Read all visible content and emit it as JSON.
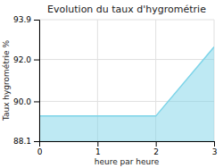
{
  "chart_data": {
    "type": "area",
    "title": "Evolution du taux d'hygrométrie",
    "xlabel": "heure par heure",
    "ylabel": "Taux hygrométrie %",
    "x": [
      0,
      2,
      3
    ],
    "values": [
      89.3,
      89.3,
      92.6
    ],
    "color": "#7dd4e8",
    "xlim": [
      0,
      3
    ],
    "ylim": [
      88.1,
      93.9
    ],
    "xticks": [
      0,
      1,
      2,
      3
    ],
    "yticks": [
      88.1,
      {
        "value": 90,
        "label": "90.0"
      },
      {
        "value": 92,
        "label": "92.0"
      },
      93.9
    ],
    "grid": true
  }
}
